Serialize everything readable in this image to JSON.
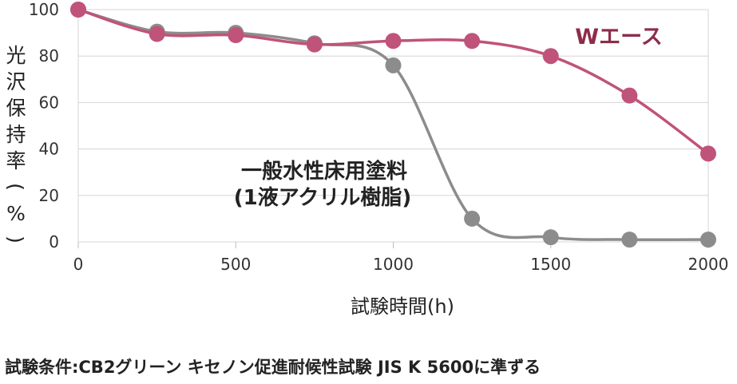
{
  "chart_data": {
    "type": "line",
    "title": "",
    "xlabel": "試験時間(h)",
    "ylabel": "光沢保持率(%)",
    "xlim": [
      0,
      2000
    ],
    "ylim": [
      0,
      100
    ],
    "xticks": [
      "0",
      "500",
      "1000",
      "1500",
      "2000"
    ],
    "yticks": [
      "0",
      "20",
      "40",
      "60",
      "80",
      "100"
    ],
    "grid": "horizontal",
    "x": [
      0,
      250,
      500,
      750,
      1000,
      1250,
      1500,
      1750,
      2000
    ],
    "series": [
      {
        "name": "一般水性床用塗料(1液アクリル樹脂)",
        "label_lines": [
          "一般水性床用塗料",
          "(1液アクリル樹脂)"
        ],
        "color": "#8c8c8c",
        "values": [
          100,
          90.5,
          90,
          85.5,
          76,
          10,
          2,
          1,
          1
        ]
      },
      {
        "name": "Wエース",
        "label_lines": [
          "Wエース"
        ],
        "color": "#c0537a",
        "values": [
          100,
          89.5,
          89,
          85,
          86.5,
          86.5,
          80,
          63,
          38
        ]
      }
    ]
  },
  "footnote": "試験条件:CB2グリーン キセノン促進耐候性試験 JIS K 5600に準ずる"
}
